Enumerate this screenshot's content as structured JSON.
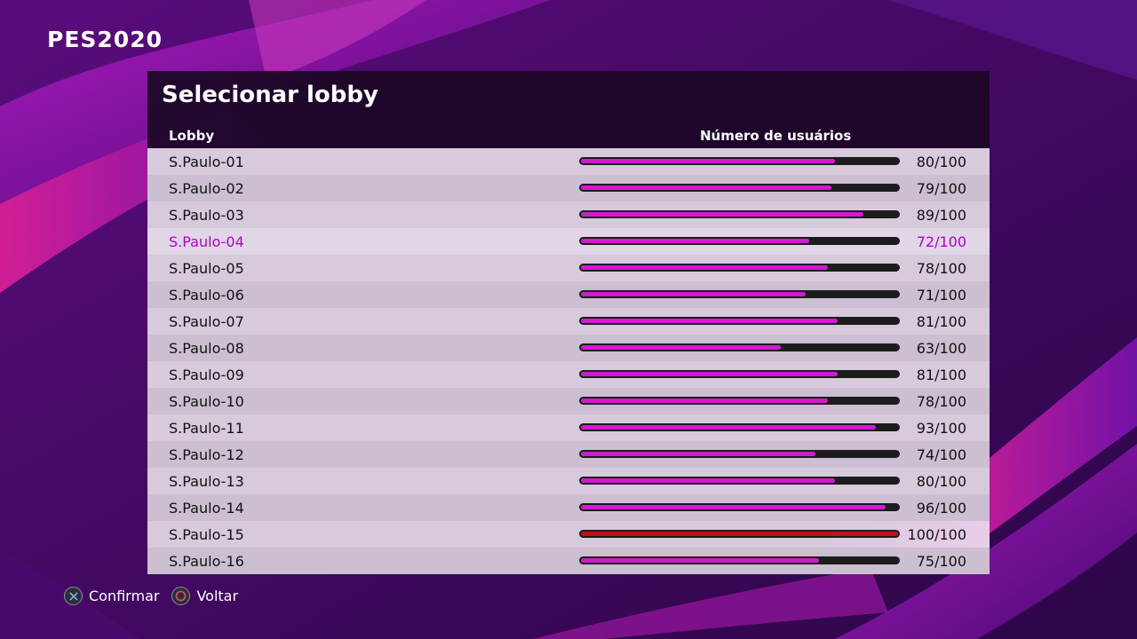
{
  "app": {
    "logo": "PES2020"
  },
  "panel": {
    "title": "Selecionar lobby",
    "columns": {
      "lobby": "Lobby",
      "users": "Número de usuários"
    },
    "selected_index": 3,
    "rows": [
      {
        "name": "S.Paulo-01",
        "count": "80/100",
        "fill": 0.8
      },
      {
        "name": "S.Paulo-02",
        "count": "79/100",
        "fill": 0.79
      },
      {
        "name": "S.Paulo-03",
        "count": "89/100",
        "fill": 0.89
      },
      {
        "name": "S.Paulo-04",
        "count": "72/100",
        "fill": 0.72
      },
      {
        "name": "S.Paulo-05",
        "count": "78/100",
        "fill": 0.78
      },
      {
        "name": "S.Paulo-06",
        "count": "71/100",
        "fill": 0.71
      },
      {
        "name": "S.Paulo-07",
        "count": "81/100",
        "fill": 0.81
      },
      {
        "name": "S.Paulo-08",
        "count": "63/100",
        "fill": 0.63
      },
      {
        "name": "S.Paulo-09",
        "count": "81/100",
        "fill": 0.81
      },
      {
        "name": "S.Paulo-10",
        "count": "78/100",
        "fill": 0.78
      },
      {
        "name": "S.Paulo-11",
        "count": "93/100",
        "fill": 0.93
      },
      {
        "name": "S.Paulo-12",
        "count": "74/100",
        "fill": 0.74
      },
      {
        "name": "S.Paulo-13",
        "count": "80/100",
        "fill": 0.8
      },
      {
        "name": "S.Paulo-14",
        "count": "96/100",
        "fill": 0.96
      },
      {
        "name": "S.Paulo-15",
        "count": "100/100",
        "fill": 1.0
      },
      {
        "name": "S.Paulo-16",
        "count": "75/100",
        "fill": 0.75
      }
    ]
  },
  "footer": {
    "confirm_icon": "cross-button-icon",
    "confirm_label": "Confirmar",
    "back_icon": "circle-button-icon",
    "back_label": "Voltar"
  },
  "colors": {
    "bar_fill": "#d21ad0",
    "bar_full": "#c40f18",
    "bar_track": "#1c1c1c",
    "selected_text": "#b000c8"
  }
}
